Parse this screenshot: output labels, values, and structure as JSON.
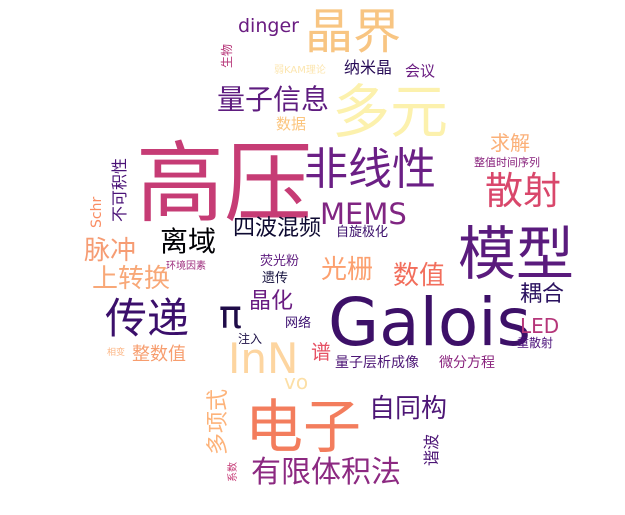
{
  "words": [
    {
      "text": "高压",
      "color": "#c63c75"
    },
    {
      "text": "Galois",
      "color": "#3d1068"
    },
    {
      "text": "晶界",
      "color": "#f8c582"
    },
    {
      "text": "多元",
      "color": "#fcf1ad"
    },
    {
      "text": "电子",
      "color": "#f37d5d"
    },
    {
      "text": "模型",
      "color": "#5a1b7d"
    },
    {
      "text": "非线性",
      "color": "#6b1f85"
    },
    {
      "text": "InN",
      "color": "#fdd5a0"
    },
    {
      "text": "散射",
      "color": "#d9476b"
    },
    {
      "text": "传递",
      "color": "#3b0f6b"
    },
    {
      "text": "MEMS",
      "color": "#802582"
    },
    {
      "text": "有限体积法",
      "color": "#8c2981"
    },
    {
      "text": "量子信息",
      "color": "#5e1c7f"
    },
    {
      "text": "自同构",
      "color": "#4d1676"
    },
    {
      "text": "离域",
      "color": "#000004"
    },
    {
      "text": "脉冲",
      "color": "#f69c73"
    },
    {
      "text": "上转换",
      "color": "#f8a878"
    },
    {
      "text": "光栅",
      "color": "#fca06f"
    },
    {
      "text": "数值",
      "color": "#f26e5c"
    },
    {
      "text": "π",
      "color": "#1f0c48"
    },
    {
      "text": "四波混频",
      "color": "#0e0a31"
    },
    {
      "text": "多项式",
      "color": "#fdb37a"
    },
    {
      "text": "耦合",
      "color": "#2a115f"
    },
    {
      "text": "整数值",
      "color": "#f79d6e"
    },
    {
      "text": "晶化",
      "color": "#6a1c81"
    },
    {
      "text": "求解",
      "color": "#fbb078"
    },
    {
      "text": "dinger",
      "color": "#6a1c81"
    },
    {
      "text": "LED",
      "color": "#b5367a"
    },
    {
      "text": "谱",
      "color": "#e65164"
    },
    {
      "text": "vo",
      "color": "#fcdfa6"
    },
    {
      "text": "不可积性",
      "color": "#4a1277"
    },
    {
      "text": "纳米晶",
      "color": "#280c57"
    },
    {
      "text": "量子层析成像",
      "color": "#4d1676"
    },
    {
      "text": "微分方程",
      "color": "#8a247e"
    },
    {
      "text": "Schr",
      "color": "#fa8d63"
    },
    {
      "text": "会议",
      "color": "#6a1c81"
    },
    {
      "text": "数据",
      "color": "#fbc57e"
    },
    {
      "text": "谐波",
      "color": "#4d1676"
    },
    {
      "text": "自旋极化",
      "color": "#3b0f6b"
    },
    {
      "text": "荧光粉",
      "color": "#5d1a7e"
    },
    {
      "text": "遗传",
      "color": "#14103d"
    },
    {
      "text": "网络",
      "color": "#3b0f70"
    },
    {
      "text": "注入",
      "color": "#1d1147"
    },
    {
      "text": "重散射",
      "color": "#4a1079"
    },
    {
      "text": "整值时间序列",
      "color": "#8a247e"
    },
    {
      "text": "环境因素",
      "color": "#9e2e7e"
    },
    {
      "text": "生物",
      "color": "#b73779"
    },
    {
      "text": "弱KAM理论",
      "color": "#fce6b0"
    },
    {
      "text": "系数",
      "color": "#c53a76"
    },
    {
      "text": "相变",
      "color": "#fcb98a"
    }
  ]
}
